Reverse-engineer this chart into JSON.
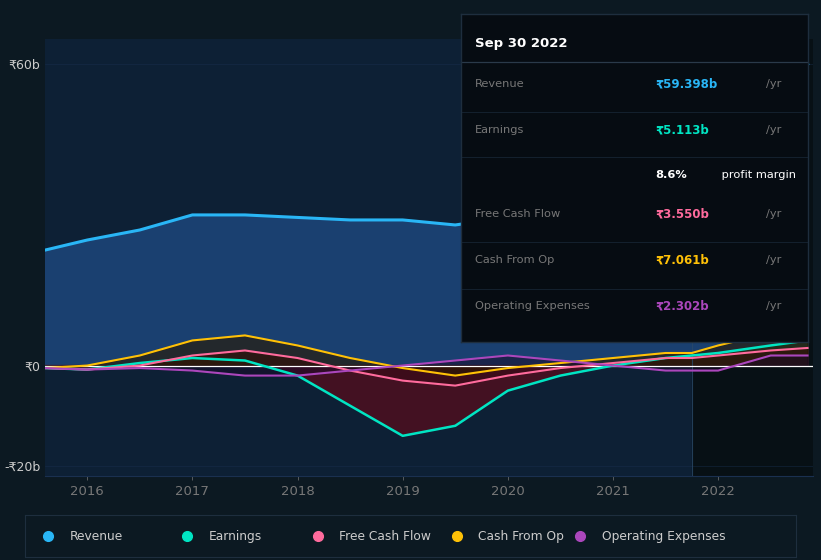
{
  "bg_color": "#0c1922",
  "plot_bg_color": "#0d2035",
  "highlight_bg": "#071015",
  "revenue_color": "#29b6f6",
  "revenue_fill": "#1a4070",
  "earnings_color": "#00e5c3",
  "earnings_neg_fill": "#4a1020",
  "earnings_pos_fill": "#1a4a3a",
  "fcf_color": "#ff6b9d",
  "fcf_fill": "#3a0a18",
  "cashop_color": "#ffc107",
  "cashop_fill": "#2a1800",
  "opex_color": "#ab47bc",
  "opex_fill": "#1a0a28",
  "zero_line_color": "#ffffff",
  "grid_color": "#1a3050",
  "text_color": "#cccccc",
  "dim_text": "#777777",
  "separator_x": 2021.75,
  "xlim": [
    2015.6,
    2022.9
  ],
  "ylim": [
    -22,
    65
  ],
  "xticks": [
    2016,
    2017,
    2018,
    2019,
    2020,
    2021,
    2022
  ],
  "ytick_positions": [
    -20,
    0,
    60
  ],
  "ytick_labels": [
    "-₹20b",
    "₹0",
    "₹60b"
  ],
  "revenue_x": [
    2015.6,
    2016.0,
    2016.5,
    2017.0,
    2017.5,
    2018.0,
    2018.5,
    2019.0,
    2019.5,
    2020.0,
    2020.5,
    2021.0,
    2021.5,
    2021.75,
    2022.0,
    2022.3,
    2022.6,
    2022.85
  ],
  "revenue_y": [
    23,
    25,
    27,
    30,
    30,
    29.5,
    29,
    29,
    28,
    29.5,
    27,
    24,
    22,
    22,
    29,
    42,
    54,
    60
  ],
  "earnings_x": [
    2015.6,
    2016.0,
    2016.5,
    2017.0,
    2017.5,
    2018.0,
    2018.5,
    2019.0,
    2019.5,
    2020.0,
    2020.5,
    2021.0,
    2021.5,
    2021.75,
    2022.0,
    2022.5,
    2022.85
  ],
  "earnings_y": [
    -0.5,
    -0.8,
    0.5,
    1.5,
    1.0,
    -2,
    -8,
    -14,
    -12,
    -5,
    -2,
    0,
    1.5,
    2,
    2.5,
    4,
    5
  ],
  "fcf_x": [
    2015.6,
    2016.0,
    2016.5,
    2017.0,
    2017.5,
    2018.0,
    2018.5,
    2019.0,
    2019.5,
    2020.0,
    2020.5,
    2021.0,
    2021.5,
    2021.75,
    2022.0,
    2022.5,
    2022.85
  ],
  "fcf_y": [
    -0.5,
    -0.8,
    0,
    2,
    3,
    1.5,
    -1,
    -3,
    -4,
    -2,
    -0.5,
    0.5,
    1.5,
    1.5,
    2,
    3,
    3.5
  ],
  "cashop_x": [
    2015.6,
    2016.0,
    2016.5,
    2017.0,
    2017.5,
    2018.0,
    2018.5,
    2019.0,
    2019.5,
    2020.0,
    2020.5,
    2021.0,
    2021.5,
    2021.75,
    2022.0,
    2022.5,
    2022.85
  ],
  "cashop_y": [
    -0.5,
    0,
    2,
    5,
    6,
    4,
    1.5,
    -0.5,
    -2,
    -0.5,
    0.5,
    1.5,
    2.5,
    2.5,
    4,
    6.5,
    7
  ],
  "opex_x": [
    2015.6,
    2016.0,
    2016.5,
    2017.0,
    2017.5,
    2018.0,
    2018.5,
    2019.0,
    2019.5,
    2020.0,
    2020.5,
    2021.0,
    2021.5,
    2021.75,
    2022.0,
    2022.5,
    2022.85
  ],
  "opex_y": [
    -0.5,
    -0.8,
    -0.5,
    -1,
    -2,
    -2,
    -1,
    0,
    1,
    2,
    1,
    0,
    -1,
    -1,
    -1,
    2,
    2
  ],
  "info_date": "Sep 30 2022",
  "info_rows": [
    {
      "label": "Revenue",
      "value": "₹59.398b",
      "color": "#29b6f6",
      "suffix": "/yr",
      "is_margin": false
    },
    {
      "label": "Earnings",
      "value": "₹5.113b",
      "color": "#00e5c3",
      "suffix": "/yr",
      "is_margin": false
    },
    {
      "label": "",
      "value": "8.6%",
      "color": "#ffffff",
      "suffix": " profit margin",
      "is_margin": true
    },
    {
      "label": "Free Cash Flow",
      "value": "₹3.550b",
      "color": "#ff6b9d",
      "suffix": "/yr",
      "is_margin": false
    },
    {
      "label": "Cash From Op",
      "value": "₹7.061b",
      "color": "#ffc107",
      "suffix": "/yr",
      "is_margin": false
    },
    {
      "label": "Operating Expenses",
      "value": "₹2.302b",
      "color": "#ab47bc",
      "suffix": "/yr",
      "is_margin": false
    }
  ],
  "legend_items": [
    {
      "label": "Revenue",
      "color": "#29b6f6"
    },
    {
      "label": "Earnings",
      "color": "#00e5c3"
    },
    {
      "label": "Free Cash Flow",
      "color": "#ff6b9d"
    },
    {
      "label": "Cash From Op",
      "color": "#ffc107"
    },
    {
      "label": "Operating Expenses",
      "color": "#ab47bc"
    }
  ]
}
